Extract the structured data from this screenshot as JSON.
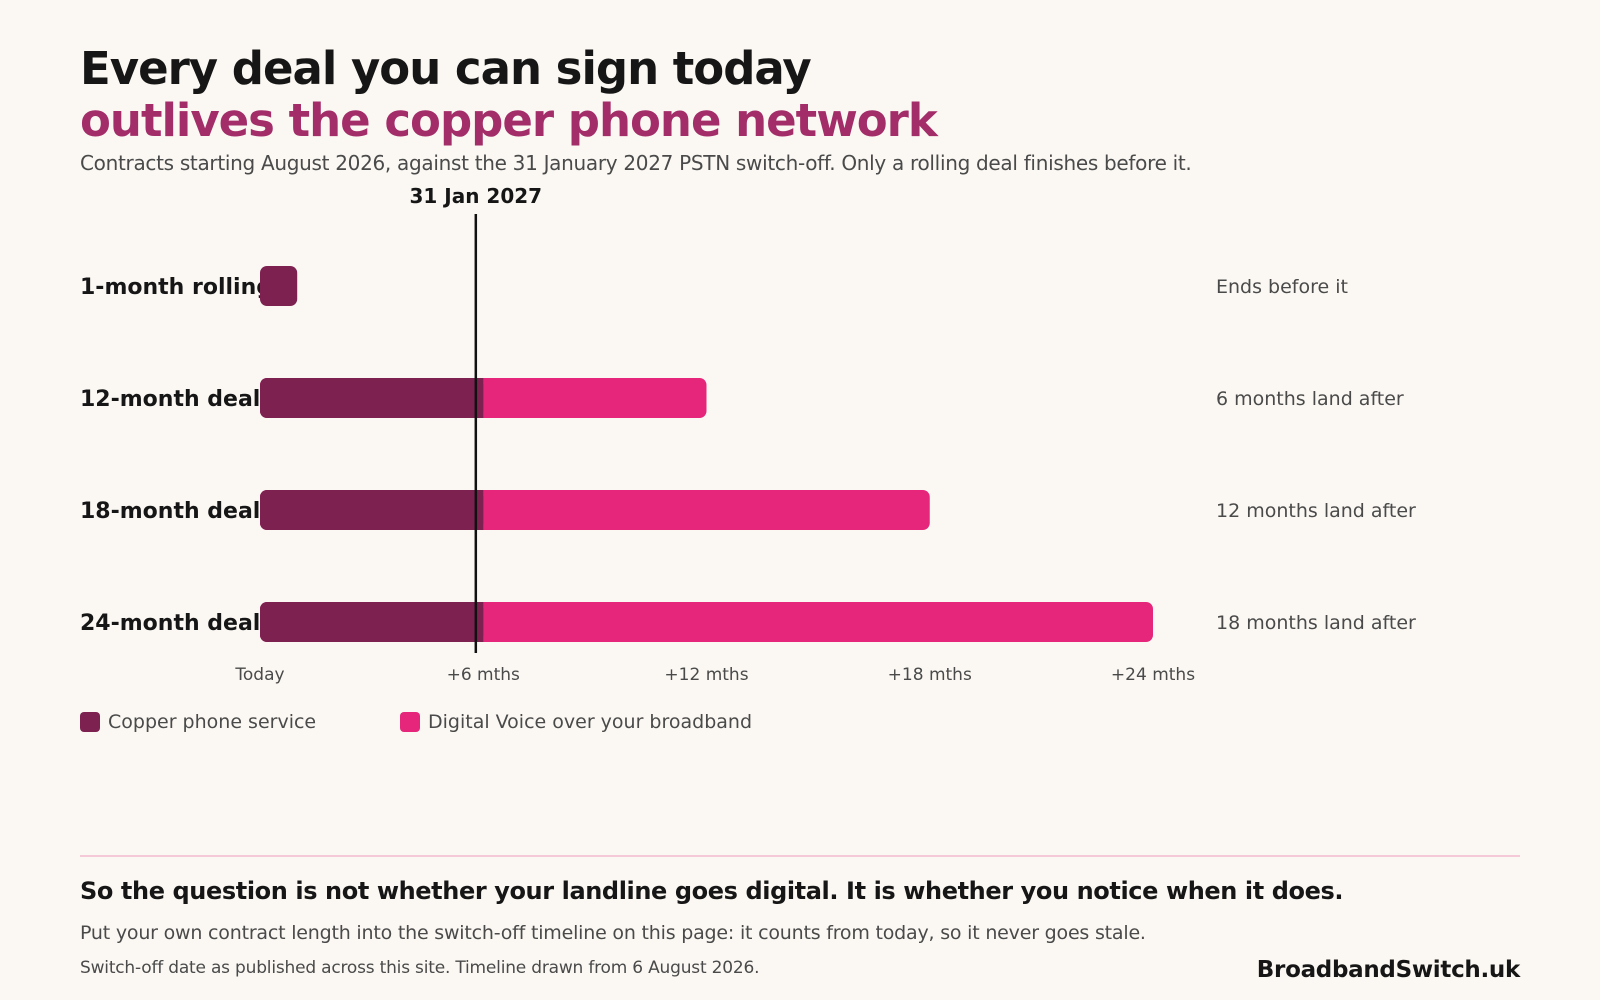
{
  "header": {
    "title_line1": "Every deal you can sign today",
    "title_line2": "outlives the copper phone network",
    "subtitle": "Contracts starting August 2026, against the 31 January 2027 PSTN switch-off.  Only a rolling deal finishes before it."
  },
  "chart_data": {
    "type": "bar",
    "orientation": "horizontal",
    "stacked": true,
    "categories": [
      "1-month rolling",
      "12-month deal",
      "18-month deal",
      "24-month deal"
    ],
    "series": [
      {
        "name": "Copper phone service",
        "values": [
          1,
          6,
          6,
          6
        ],
        "color": "#7c2150"
      },
      {
        "name": "Digital Voice over your broadband",
        "values": [
          0,
          6,
          12,
          18
        ],
        "color": "#e5267a"
      }
    ],
    "x_ticks": [
      "Today",
      "+6 mths",
      "+12 mths",
      "+18 mths",
      "+24 mths"
    ],
    "xlim": [
      0,
      24
    ],
    "switch_off": {
      "value": 5.8,
      "label": "31 Jan 2027"
    },
    "row_notes": [
      "Ends before it",
      "6 months land after",
      "12 months land after",
      "18 months land after"
    ],
    "legend": {
      "placement": "bottom-left"
    },
    "grid": false
  },
  "footer": {
    "headline": "So the question is not whether your landline goes digital.  It is whether you notice when it does.",
    "body": "Put your own contract length into the switch-off timeline on this page: it counts from today, so it never goes stale.",
    "note": "Switch-off date as published across this site.  Timeline drawn from 6 August 2026.",
    "brand": "BroadbandSwitch.uk"
  }
}
